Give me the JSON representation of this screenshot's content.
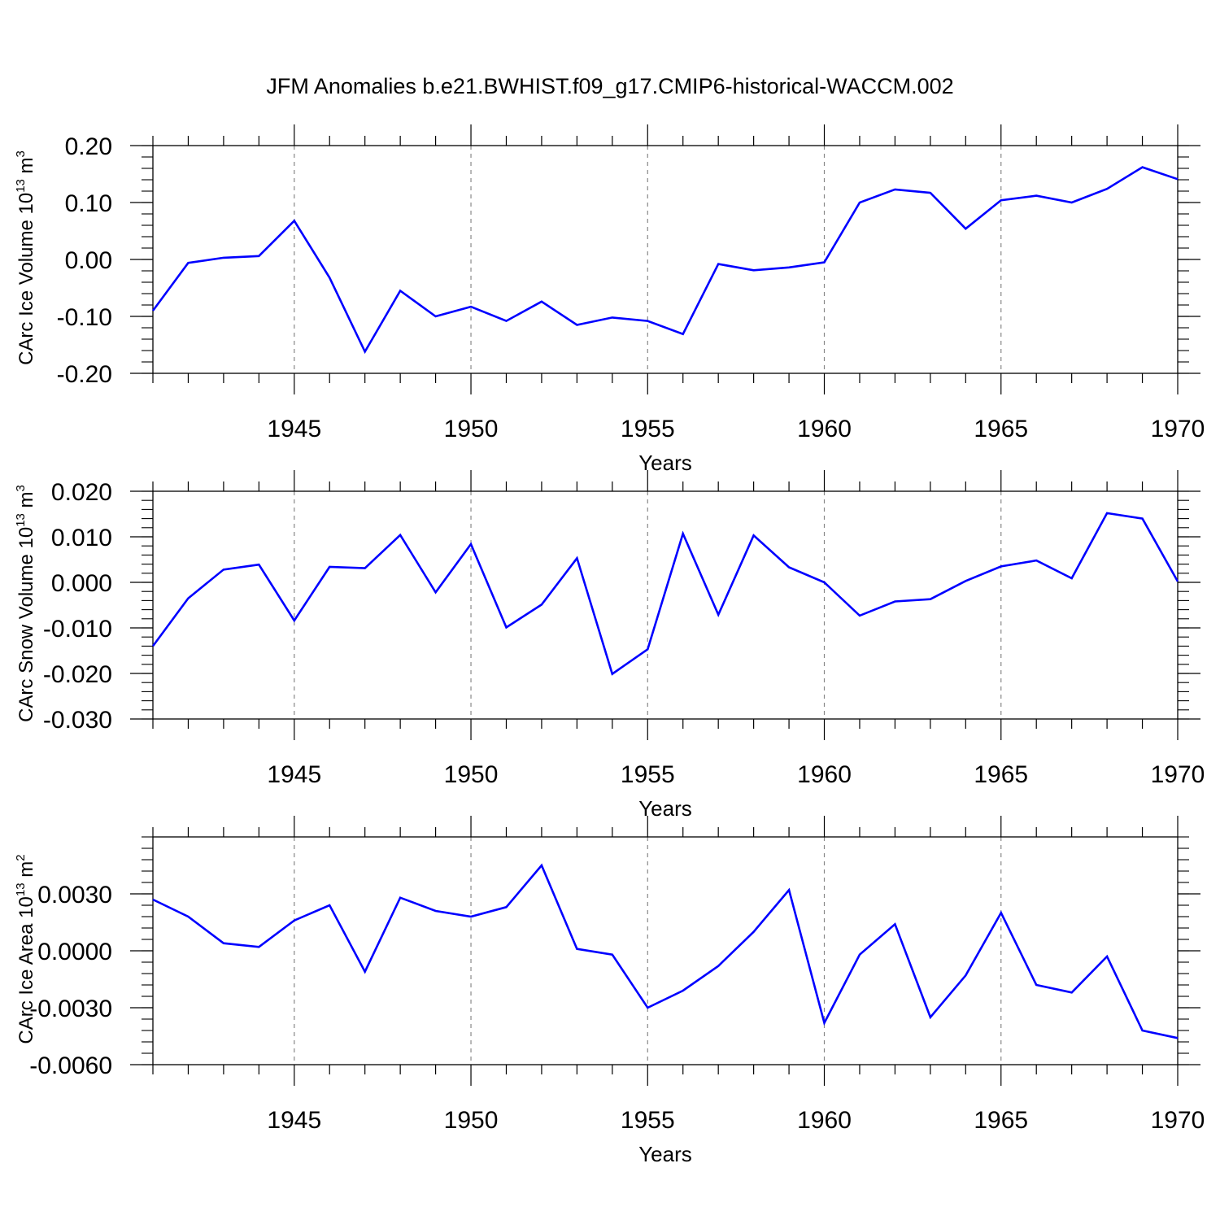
{
  "title": "JFM Anomalies b.e21.BWHIST.f09_g17.CMIP6-historical-WACCM.002",
  "line_color": "#0000ff",
  "chart_data": [
    {
      "type": "line",
      "xlabel": "Years",
      "ylabel": "CArc Ice Volume 10",
      "ylabel_exp": "13",
      "ylabel_unit": " m",
      "ylabel_unit_exp": "3",
      "xlim": [
        1941,
        1970
      ],
      "ylim": [
        -0.2,
        0.2
      ],
      "x_ticks": [
        "1945",
        "1950",
        "1955",
        "1960",
        "1965",
        "1970"
      ],
      "y_ticks": [
        "-0.20",
        "-0.10",
        "0.00",
        "0.10",
        "0.20"
      ],
      "grid": "dashed vertical lines at labeled years",
      "x": [
        1941,
        1942,
        1943,
        1944,
        1945,
        1946,
        1947,
        1948,
        1949,
        1950,
        1951,
        1952,
        1953,
        1954,
        1955,
        1956,
        1957,
        1958,
        1959,
        1960,
        1961,
        1962,
        1963,
        1964,
        1965,
        1966,
        1967,
        1968,
        1969,
        1970
      ],
      "values": [
        -0.09,
        -0.006,
        0.003,
        0.006,
        0.068,
        -0.032,
        -0.162,
        -0.055,
        -0.1,
        -0.083,
        -0.108,
        -0.074,
        -0.115,
        -0.102,
        -0.108,
        -0.131,
        -0.008,
        -0.019,
        -0.014,
        -0.005,
        0.1,
        0.123,
        0.117,
        0.054,
        0.104,
        0.112,
        0.1,
        0.124,
        0.162,
        0.141
      ]
    },
    {
      "type": "line",
      "xlabel": "Years",
      "ylabel": "CArc Snow Volume 10",
      "ylabel_exp": "13",
      "ylabel_unit": " m",
      "ylabel_unit_exp": "3",
      "xlim": [
        1941,
        1970
      ],
      "ylim": [
        -0.03,
        0.02
      ],
      "x_ticks": [
        "1945",
        "1950",
        "1955",
        "1960",
        "1965",
        "1970"
      ],
      "y_ticks": [
        "-0.030",
        "-0.020",
        "-0.010",
        "0.000",
        "0.010",
        "0.020"
      ],
      "grid": "dashed vertical lines at labeled years",
      "x": [
        1941,
        1942,
        1943,
        1944,
        1945,
        1946,
        1947,
        1948,
        1949,
        1950,
        1951,
        1952,
        1953,
        1954,
        1955,
        1956,
        1957,
        1958,
        1959,
        1960,
        1961,
        1962,
        1963,
        1964,
        1965,
        1966,
        1967,
        1968,
        1969,
        1970
      ],
      "values": [
        -0.014,
        -0.0035,
        0.0028,
        0.0039,
        -0.0084,
        0.0034,
        0.0031,
        0.0104,
        -0.0022,
        0.0084,
        -0.0099,
        -0.0049,
        0.0053,
        -0.0201,
        -0.0147,
        0.0107,
        -0.0071,
        0.0103,
        0.0033,
        0.0,
        -0.0073,
        -0.0042,
        -0.0037,
        0.0003,
        0.0035,
        0.0048,
        0.0009,
        0.0152,
        0.014,
        0.0002
      ]
    },
    {
      "type": "line",
      "xlabel": "Years",
      "ylabel": "CArc Ice Area 10",
      "ylabel_exp": "13",
      "ylabel_unit": " m",
      "ylabel_unit_exp": "2",
      "xlim": [
        1941,
        1970
      ],
      "ylim": [
        -0.006,
        0.006
      ],
      "x_ticks": [
        "1945",
        "1950",
        "1955",
        "1960",
        "1965",
        "1970"
      ],
      "y_ticks": [
        "-0.0060",
        "-0.0030",
        "0.0000",
        "0.0030"
      ],
      "grid": "dashed vertical lines at labeled years",
      "x": [
        1941,
        1942,
        1943,
        1944,
        1945,
        1946,
        1947,
        1948,
        1949,
        1950,
        1951,
        1952,
        1953,
        1954,
        1955,
        1956,
        1957,
        1958,
        1959,
        1960,
        1961,
        1962,
        1963,
        1964,
        1965,
        1966,
        1967,
        1968,
        1969,
        1970
      ],
      "values": [
        0.0027,
        0.0018,
        0.0004,
        0.0002,
        0.0016,
        0.0024,
        -0.0011,
        0.0028,
        0.0021,
        0.0018,
        0.0023,
        0.0045,
        0.0001,
        -0.0002,
        -0.003,
        -0.0021,
        -0.0008,
        0.001,
        0.0032,
        -0.0038,
        -0.0002,
        0.0014,
        -0.0035,
        -0.0013,
        0.002,
        -0.0018,
        -0.0022,
        -0.0003,
        -0.0042,
        -0.0046
      ]
    }
  ]
}
